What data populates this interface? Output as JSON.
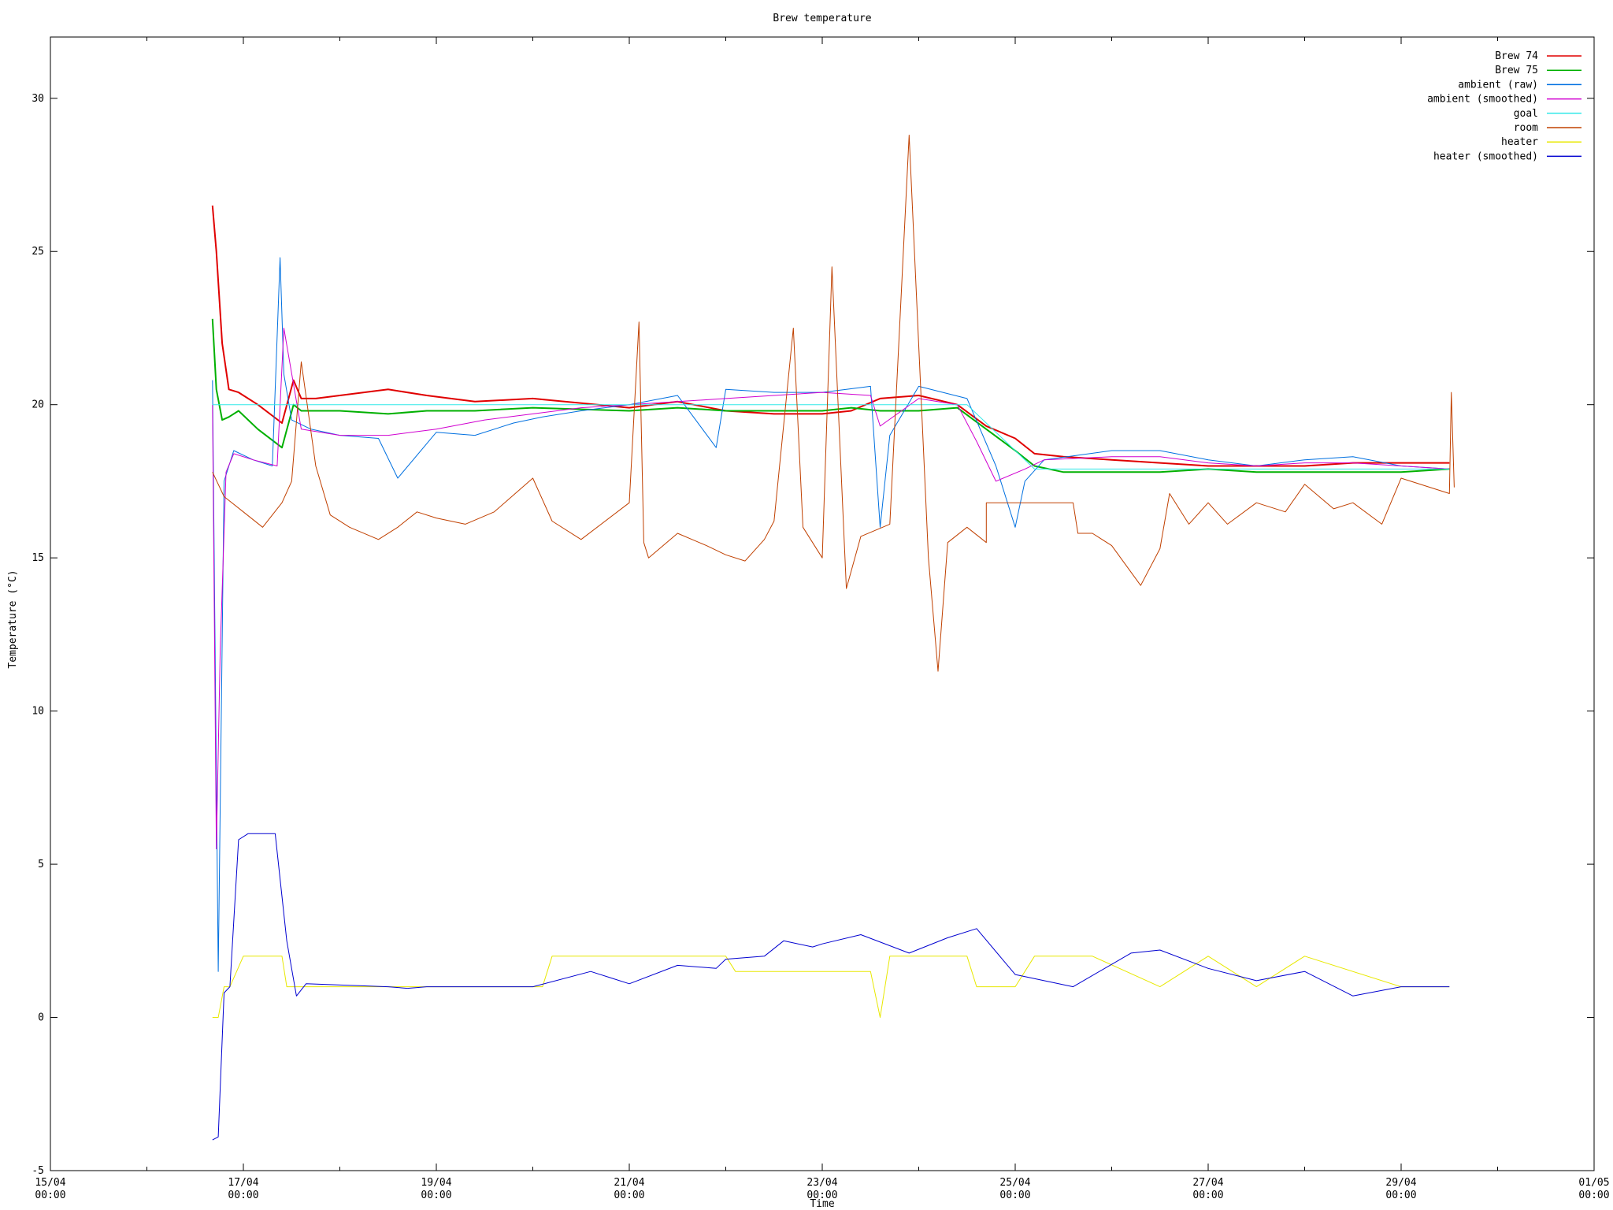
{
  "chart_data": {
    "type": "line",
    "title": "Brew temperature",
    "xlabel": "Time",
    "ylabel": "Temperature (°C)",
    "x_unit": "day",
    "xlim": [
      "15/04 00:00",
      "01/05 00:00"
    ],
    "ylim": [
      -5,
      32
    ],
    "yticks": [
      -5,
      0,
      5,
      10,
      15,
      20,
      25,
      30
    ],
    "xticks": [
      {
        "x": 0,
        "label1": "15/04",
        "label2": "00:00"
      },
      {
        "x": 2,
        "label1": "17/04",
        "label2": "00:00"
      },
      {
        "x": 4,
        "label1": "19/04",
        "label2": "00:00"
      },
      {
        "x": 6,
        "label1": "21/04",
        "label2": "00:00"
      },
      {
        "x": 8,
        "label1": "23/04",
        "label2": "00:00"
      },
      {
        "x": 10,
        "label1": "25/04",
        "label2": "00:00"
      },
      {
        "x": 12,
        "label1": "27/04",
        "label2": "00:00"
      },
      {
        "x": 14,
        "label1": "29/04",
        "label2": "00:00"
      },
      {
        "x": 16,
        "label1": "01/05",
        "label2": "00:00"
      }
    ],
    "legend_position": "top-right",
    "grid": false,
    "series": [
      {
        "name": "Brew 74",
        "color": "#e00000",
        "width": 2,
        "x": [
          1.68,
          1.72,
          1.78,
          1.85,
          1.95,
          2.15,
          2.4,
          2.52,
          2.6,
          2.75,
          3.0,
          3.5,
          3.9,
          4.4,
          5.0,
          6.0,
          6.5,
          7.0,
          7.5,
          8.0,
          8.3,
          8.6,
          9.0,
          9.4,
          9.7,
          10.0,
          10.2,
          10.5,
          11.0,
          11.5,
          12.0,
          12.5,
          13.0,
          13.5,
          14.0,
          14.5
        ],
        "y": [
          26.5,
          25,
          22,
          20.5,
          20.4,
          20.0,
          19.4,
          20.8,
          20.2,
          20.2,
          20.3,
          20.5,
          20.3,
          20.1,
          20.2,
          19.9,
          20.1,
          19.8,
          19.7,
          19.7,
          19.8,
          20.2,
          20.3,
          20.0,
          19.3,
          18.9,
          18.4,
          18.3,
          18.2,
          18.1,
          18.0,
          18.0,
          18.0,
          18.1,
          18.1,
          18.1
        ]
      },
      {
        "name": "Brew 75",
        "color": "#00b000",
        "width": 2,
        "x": [
          1.68,
          1.72,
          1.78,
          1.85,
          1.95,
          2.15,
          2.4,
          2.52,
          2.6,
          2.75,
          3.0,
          3.5,
          3.9,
          4.4,
          5.0,
          6.0,
          6.5,
          7.0,
          7.5,
          8.0,
          8.3,
          8.6,
          9.0,
          9.4,
          9.7,
          10.0,
          10.2,
          10.5,
          11.0,
          11.5,
          12.0,
          12.5,
          13.0,
          13.5,
          14.0,
          14.5
        ],
        "y": [
          22.8,
          20.5,
          19.5,
          19.6,
          19.8,
          19.2,
          18.6,
          20.0,
          19.8,
          19.8,
          19.8,
          19.7,
          19.8,
          19.8,
          19.9,
          19.8,
          19.9,
          19.8,
          19.8,
          19.8,
          19.9,
          19.8,
          19.8,
          19.9,
          19.2,
          18.5,
          18.0,
          17.8,
          17.8,
          17.8,
          17.9,
          17.8,
          17.8,
          17.8,
          17.8,
          17.9
        ]
      },
      {
        "name": "ambient (raw)",
        "color": "#0070e0",
        "width": 1,
        "x": [
          1.68,
          1.74,
          1.8,
          1.9,
          2.1,
          2.3,
          2.38,
          2.42,
          2.5,
          2.7,
          3.0,
          3.4,
          3.6,
          4.0,
          4.4,
          4.8,
          5.1,
          5.5,
          6.0,
          6.5,
          6.9,
          7.0,
          7.5,
          8.0,
          8.5,
          8.6,
          8.7,
          9.0,
          9.5,
          9.8,
          10.0,
          10.1,
          10.3,
          11.0,
          11.5,
          12.0,
          12.5,
          13.0,
          13.5,
          14.0,
          14.5
        ],
        "y": [
          20.8,
          1.5,
          17.5,
          18.5,
          18.2,
          18.0,
          24.8,
          21.0,
          19.5,
          19.2,
          19.0,
          18.9,
          17.6,
          19.1,
          19.0,
          19.4,
          19.6,
          19.8,
          20.0,
          20.3,
          18.6,
          20.5,
          20.4,
          20.4,
          20.6,
          16.0,
          19.0,
          20.6,
          20.2,
          18.0,
          16.0,
          17.5,
          18.2,
          18.5,
          18.5,
          18.2,
          18.0,
          18.2,
          18.3,
          18.0,
          17.9
        ]
      },
      {
        "name": "ambient (smoothed)",
        "color": "#d000d0",
        "width": 1,
        "x": [
          1.68,
          1.72,
          1.76,
          1.82,
          1.9,
          2.1,
          2.35,
          2.42,
          2.6,
          3.0,
          3.5,
          4.0,
          4.5,
          5.0,
          5.5,
          6.0,
          6.5,
          7.0,
          7.5,
          8.0,
          8.5,
          8.6,
          9.0,
          9.4,
          9.6,
          9.8,
          10.1,
          10.3,
          11.0,
          11.5,
          12.0,
          12.5,
          13.0,
          13.5,
          14.0,
          14.5
        ],
        "y": [
          20.0,
          5.5,
          12.0,
          17.8,
          18.4,
          18.2,
          18.0,
          22.5,
          19.2,
          19.0,
          19.0,
          19.2,
          19.5,
          19.7,
          19.9,
          20.0,
          20.1,
          20.2,
          20.3,
          20.4,
          20.3,
          19.3,
          20.2,
          20.0,
          18.8,
          17.5,
          17.9,
          18.2,
          18.3,
          18.3,
          18.1,
          18.0,
          18.1,
          18.1,
          18.0,
          17.9
        ]
      },
      {
        "name": "goal",
        "color": "#30e8e8",
        "width": 1,
        "x": [
          1.68,
          9.5,
          10.2,
          14.5
        ],
        "y": [
          20.0,
          20.0,
          17.9,
          17.9
        ]
      },
      {
        "name": "room",
        "color": "#c04000",
        "width": 1,
        "x": [
          1.68,
          1.8,
          2.0,
          2.2,
          2.4,
          2.5,
          2.6,
          2.75,
          2.9,
          3.1,
          3.4,
          3.6,
          3.8,
          4.0,
          4.3,
          4.6,
          5.0,
          5.2,
          5.5,
          6.0,
          6.1,
          6.15,
          6.2,
          6.5,
          6.8,
          7.0,
          7.2,
          7.4,
          7.5,
          7.7,
          7.8,
          8.0,
          8.1,
          8.25,
          8.4,
          8.7,
          8.9,
          9.1,
          9.2,
          9.3,
          9.5,
          9.7,
          9.7,
          10.6,
          10.65,
          10.8,
          11.0,
          11.3,
          11.5,
          11.6,
          11.8,
          12.0,
          12.2,
          12.5,
          12.8,
          13.0,
          13.3,
          13.5,
          13.8,
          14.0,
          14.5,
          14.52,
          14.55
        ],
        "y": [
          17.8,
          17.0,
          16.5,
          16.0,
          16.8,
          17.5,
          21.4,
          18.0,
          16.4,
          16.0,
          15.6,
          16.0,
          16.5,
          16.3,
          16.1,
          16.5,
          17.6,
          16.2,
          15.6,
          16.8,
          22.7,
          15.5,
          15.0,
          15.8,
          15.4,
          15.1,
          14.9,
          15.6,
          16.2,
          22.5,
          16.0,
          15.0,
          24.5,
          14.0,
          15.7,
          16.1,
          28.8,
          15.0,
          11.3,
          15.5,
          16.0,
          15.5,
          16.8,
          16.8,
          15.8,
          15.8,
          15.4,
          14.1,
          15.3,
          17.1,
          16.1,
          16.8,
          16.1,
          16.8,
          16.5,
          17.4,
          16.6,
          16.8,
          16.1,
          17.6,
          17.1,
          20.4,
          17.3
        ]
      },
      {
        "name": "heater",
        "color": "#e8e800",
        "width": 1,
        "x": [
          1.68,
          1.74,
          1.8,
          1.86,
          2.0,
          2.4,
          2.45,
          2.55,
          4.0,
          5.1,
          5.2,
          6.0,
          7.0,
          7.1,
          8.0,
          8.5,
          8.6,
          8.7,
          9.0,
          9.5,
          9.6,
          10.0,
          10.2,
          10.8,
          11.5,
          12.0,
          12.5,
          13.0,
          14.0,
          14.5
        ],
        "y": [
          0,
          0,
          1,
          1,
          2,
          2,
          1,
          1,
          1,
          1,
          2,
          2,
          2,
          1.5,
          1.5,
          1.5,
          0,
          2,
          2,
          2,
          1,
          1,
          2,
          2,
          1,
          2,
          1,
          2,
          1,
          1
        ]
      },
      {
        "name": "heater (smoothed)",
        "color": "#0000d0",
        "width": 1,
        "x": [
          1.68,
          1.74,
          1.8,
          1.86,
          1.95,
          2.05,
          2.15,
          2.33,
          2.45,
          2.55,
          2.65,
          3.5,
          3.7,
          3.9,
          4.0,
          5.0,
          5.6,
          5.8,
          6.0,
          6.5,
          6.9,
          7.0,
          7.4,
          7.6,
          7.9,
          8.0,
          8.4,
          8.9,
          9.3,
          9.6,
          10.0,
          10.6,
          11.2,
          11.5,
          12.0,
          12.5,
          13.0,
          13.5,
          14.0,
          14.5
        ],
        "y": [
          -4,
          -3.9,
          0.8,
          1.0,
          5.8,
          6.0,
          6.0,
          6.0,
          2.5,
          0.7,
          1.1,
          1.0,
          0.95,
          1.0,
          1.0,
          1.0,
          1.5,
          1.3,
          1.1,
          1.7,
          1.6,
          1.9,
          2.0,
          2.5,
          2.3,
          2.4,
          2.7,
          2.1,
          2.6,
          2.9,
          1.4,
          1.0,
          2.1,
          2.2,
          1.6,
          1.2,
          1.5,
          0.7,
          1.0,
          1.0
        ]
      }
    ]
  }
}
